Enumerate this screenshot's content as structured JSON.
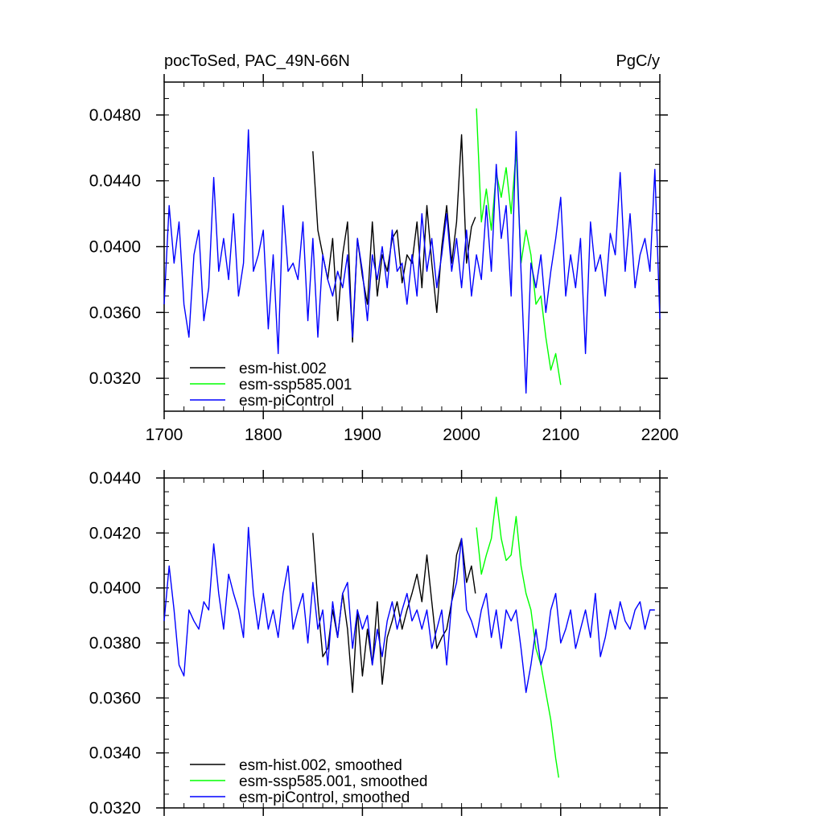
{
  "chart_data": [
    {
      "type": "line",
      "title": "pocToSed, PAC_49N-66N",
      "units": "PgC/y",
      "xlabel": "",
      "ylabel": "",
      "xlim": [
        1700,
        2200
      ],
      "ylim": [
        0.03,
        0.05
      ],
      "x_ticks": [
        1700,
        1800,
        1900,
        2000,
        2100,
        2200
      ],
      "x_tick_labels": [
        "1700",
        "1800",
        "1900",
        "2000",
        "2100",
        "2200"
      ],
      "y_ticks": [
        0.032,
        0.036,
        0.04,
        0.044,
        0.048
      ],
      "y_tick_labels": [
        "0.0320",
        "0.0360",
        "0.0400",
        "0.0440",
        "0.0480"
      ],
      "legend_position": "bottom-left",
      "series": [
        {
          "name": "esm-hist.002",
          "color": "#000000",
          "x": [
            1850,
            1855,
            1860,
            1865,
            1870,
            1875,
            1880,
            1885,
            1890,
            1895,
            1900,
            1905,
            1910,
            1915,
            1920,
            1925,
            1930,
            1935,
            1940,
            1945,
            1950,
            1955,
            1960,
            1965,
            1970,
            1975,
            1980,
            1985,
            1990,
            1995,
            2000,
            2005,
            2010,
            2014
          ],
          "values": [
            0.0458,
            0.041,
            0.0395,
            0.038,
            0.0405,
            0.0355,
            0.0395,
            0.0415,
            0.0342,
            0.0405,
            0.0382,
            0.0365,
            0.0415,
            0.037,
            0.0395,
            0.0385,
            0.0405,
            0.041,
            0.0378,
            0.0395,
            0.039,
            0.0415,
            0.0375,
            0.0425,
            0.039,
            0.036,
            0.04,
            0.0425,
            0.039,
            0.0415,
            0.0468,
            0.039,
            0.0412,
            0.0418
          ]
        },
        {
          "name": "esm-ssp585.001",
          "color": "#00ff00",
          "x": [
            2015,
            2020,
            2025,
            2030,
            2035,
            2040,
            2045,
            2050,
            2055,
            2060,
            2065,
            2070,
            2075,
            2080,
            2085,
            2090,
            2095,
            2100
          ],
          "values": [
            0.0484,
            0.0415,
            0.0435,
            0.041,
            0.0445,
            0.043,
            0.0448,
            0.042,
            0.0458,
            0.039,
            0.041,
            0.0395,
            0.0365,
            0.037,
            0.0345,
            0.0325,
            0.0335,
            0.0316
          ]
        },
        {
          "name": "esm-piControl",
          "color": "#0000ff",
          "x": [
            1700,
            1705,
            1710,
            1715,
            1720,
            1725,
            1730,
            1735,
            1740,
            1745,
            1750,
            1755,
            1760,
            1765,
            1770,
            1775,
            1780,
            1785,
            1790,
            1795,
            1800,
            1805,
            1810,
            1815,
            1820,
            1825,
            1830,
            1835,
            1840,
            1845,
            1850,
            1855,
            1860,
            1865,
            1870,
            1875,
            1880,
            1885,
            1890,
            1895,
            1900,
            1905,
            1910,
            1915,
            1920,
            1925,
            1930,
            1935,
            1940,
            1945,
            1950,
            1955,
            1960,
            1965,
            1970,
            1975,
            1980,
            1985,
            1990,
            1995,
            2000,
            2005,
            2010,
            2015,
            2020,
            2025,
            2030,
            2035,
            2040,
            2045,
            2050,
            2055,
            2060,
            2065,
            2070,
            2075,
            2080,
            2085,
            2090,
            2095,
            2100,
            2105,
            2110,
            2115,
            2120,
            2125,
            2130,
            2135,
            2140,
            2145,
            2150,
            2155,
            2160,
            2165,
            2170,
            2175,
            2180,
            2185,
            2190,
            2195,
            2200
          ],
          "values": [
            0.0365,
            0.0425,
            0.039,
            0.0415,
            0.0365,
            0.0345,
            0.0395,
            0.041,
            0.0355,
            0.0375,
            0.0442,
            0.0385,
            0.0405,
            0.038,
            0.042,
            0.037,
            0.039,
            0.0471,
            0.0385,
            0.0395,
            0.041,
            0.035,
            0.0395,
            0.0335,
            0.0425,
            0.0385,
            0.039,
            0.038,
            0.0415,
            0.0355,
            0.0405,
            0.0345,
            0.0395,
            0.038,
            0.037,
            0.0385,
            0.0375,
            0.0395,
            0.0345,
            0.0405,
            0.0385,
            0.0355,
            0.0395,
            0.038,
            0.04,
            0.0375,
            0.041,
            0.0385,
            0.039,
            0.0365,
            0.0395,
            0.037,
            0.042,
            0.0385,
            0.0405,
            0.0375,
            0.0395,
            0.042,
            0.0385,
            0.0405,
            0.0375,
            0.041,
            0.037,
            0.0395,
            0.038,
            0.0425,
            0.0385,
            0.045,
            0.0405,
            0.0425,
            0.037,
            0.047,
            0.0385,
            0.0311,
            0.039,
            0.0375,
            0.0395,
            0.036,
            0.0385,
            0.0405,
            0.043,
            0.037,
            0.0395,
            0.0375,
            0.0405,
            0.0335,
            0.0415,
            0.0385,
            0.0395,
            0.037,
            0.0408,
            0.0395,
            0.0445,
            0.0385,
            0.042,
            0.0375,
            0.0395,
            0.0405,
            0.0385,
            0.0447,
            0.0356
          ]
        }
      ]
    },
    {
      "type": "line",
      "title": "",
      "xlabel": "",
      "ylabel": "",
      "xlim": [
        1700,
        2200
      ],
      "ylim": [
        0.032,
        0.044
      ],
      "y_ticks": [
        0.032,
        0.034,
        0.036,
        0.038,
        0.04,
        0.042,
        0.044
      ],
      "y_tick_labels": [
        "0.0320",
        "0.0340",
        "0.0360",
        "0.0380",
        "0.0400",
        "0.0420",
        "0.0440"
      ],
      "legend_position": "bottom-left",
      "series": [
        {
          "name": "esm-hist.002, smoothed",
          "color": "#000000",
          "x": [
            1850,
            1855,
            1860,
            1865,
            1870,
            1875,
            1880,
            1885,
            1890,
            1895,
            1900,
            1905,
            1910,
            1915,
            1920,
            1925,
            1930,
            1935,
            1940,
            1945,
            1950,
            1955,
            1960,
            1965,
            1970,
            1975,
            1980,
            1985,
            1990,
            1995,
            2000,
            2005,
            2010,
            2014
          ],
          "values": [
            0.042,
            0.0395,
            0.0375,
            0.0378,
            0.0392,
            0.0382,
            0.0398,
            0.0385,
            0.0362,
            0.0392,
            0.0368,
            0.0385,
            0.0372,
            0.0395,
            0.0365,
            0.0382,
            0.0388,
            0.0395,
            0.0385,
            0.0392,
            0.0398,
            0.0405,
            0.0395,
            0.0412,
            0.0395,
            0.0378,
            0.0382,
            0.0385,
            0.0395,
            0.0412,
            0.0418,
            0.0402,
            0.0408,
            0.0398
          ]
        },
        {
          "name": "esm-ssp585.001, smoothed",
          "color": "#00ff00",
          "x": [
            2015,
            2020,
            2025,
            2030,
            2035,
            2040,
            2045,
            2050,
            2055,
            2060,
            2065,
            2070,
            2075,
            2080,
            2085,
            2090,
            2095,
            2098
          ],
          "values": [
            0.0422,
            0.0405,
            0.0412,
            0.0418,
            0.0433,
            0.0418,
            0.041,
            0.0412,
            0.0426,
            0.0408,
            0.0398,
            0.0392,
            0.0378,
            0.0372,
            0.0362,
            0.0352,
            0.0338,
            0.0331
          ]
        },
        {
          "name": "esm-piControl, smoothed",
          "color": "#0000ff",
          "x": [
            1700,
            1705,
            1710,
            1715,
            1720,
            1725,
            1730,
            1735,
            1740,
            1745,
            1750,
            1755,
            1760,
            1765,
            1770,
            1775,
            1780,
            1785,
            1790,
            1795,
            1800,
            1805,
            1810,
            1815,
            1820,
            1825,
            1830,
            1835,
            1840,
            1845,
            1850,
            1855,
            1860,
            1865,
            1870,
            1875,
            1880,
            1885,
            1890,
            1895,
            1900,
            1905,
            1910,
            1915,
            1920,
            1925,
            1930,
            1935,
            1940,
            1945,
            1950,
            1955,
            1960,
            1965,
            1970,
            1975,
            1980,
            1985,
            1990,
            1995,
            2000,
            2005,
            2010,
            2015,
            2020,
            2025,
            2030,
            2035,
            2040,
            2045,
            2050,
            2055,
            2060,
            2065,
            2070,
            2075,
            2080,
            2085,
            2090,
            2095,
            2100,
            2105,
            2110,
            2115,
            2120,
            2125,
            2130,
            2135,
            2140,
            2145,
            2150,
            2155,
            2160,
            2165,
            2170,
            2175,
            2180,
            2185,
            2190,
            2195
          ],
          "values": [
            0.0388,
            0.0408,
            0.0392,
            0.0372,
            0.0368,
            0.0392,
            0.0388,
            0.0385,
            0.0395,
            0.0392,
            0.0416,
            0.0398,
            0.0385,
            0.0405,
            0.0398,
            0.0392,
            0.0382,
            0.0422,
            0.0398,
            0.0385,
            0.0398,
            0.0385,
            0.0392,
            0.0382,
            0.0398,
            0.0408,
            0.0385,
            0.0392,
            0.0398,
            0.038,
            0.0402,
            0.0385,
            0.0392,
            0.0372,
            0.0395,
            0.0382,
            0.0398,
            0.0402,
            0.0378,
            0.0392,
            0.0385,
            0.039,
            0.0372,
            0.0385,
            0.0375,
            0.0388,
            0.0395,
            0.0385,
            0.0392,
            0.0398,
            0.0388,
            0.0392,
            0.0385,
            0.0392,
            0.0378,
            0.0385,
            0.0392,
            0.0372,
            0.0395,
            0.0402,
            0.0418,
            0.0392,
            0.0388,
            0.0382,
            0.0392,
            0.0398,
            0.0382,
            0.0392,
            0.0378,
            0.0392,
            0.0388,
            0.0392,
            0.0378,
            0.0362,
            0.0372,
            0.0385,
            0.0372,
            0.0378,
            0.0392,
            0.0398,
            0.038,
            0.0385,
            0.0392,
            0.0378,
            0.0385,
            0.0392,
            0.0382,
            0.0398,
            0.0375,
            0.0382,
            0.0392,
            0.0385,
            0.0395,
            0.0388,
            0.0385,
            0.0392,
            0.0395,
            0.0385,
            0.0392,
            0.0392
          ]
        }
      ]
    }
  ]
}
